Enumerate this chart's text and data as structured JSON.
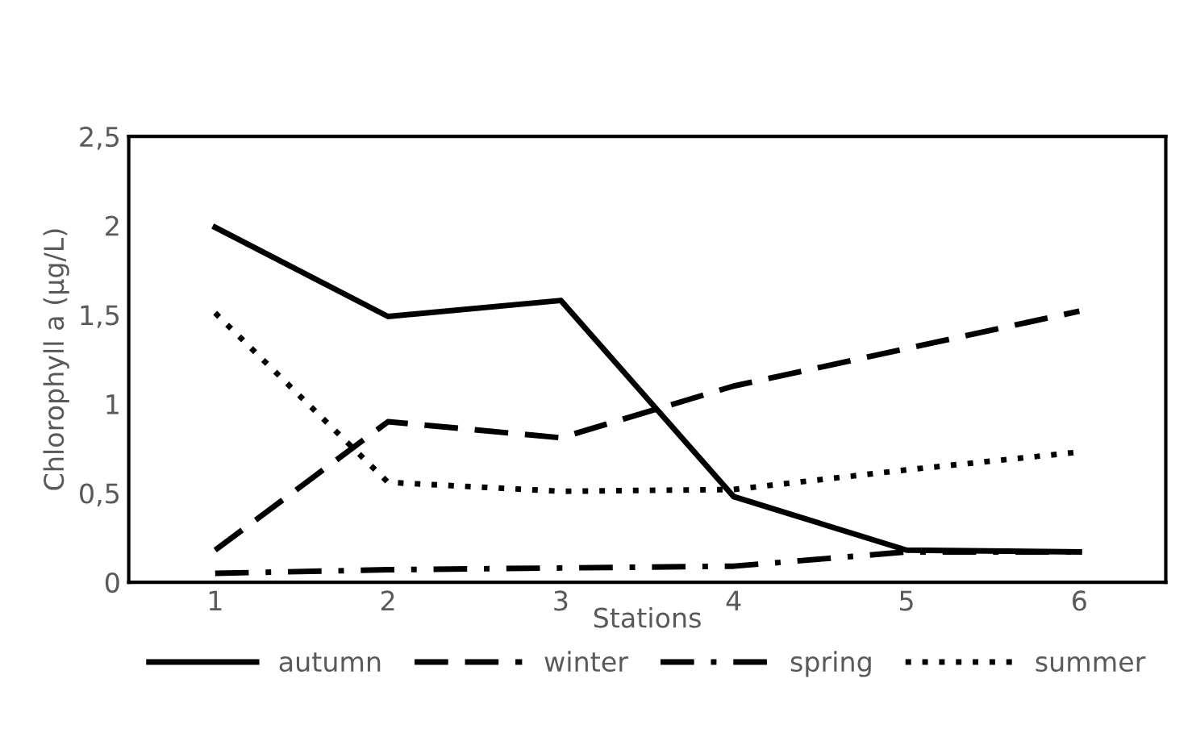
{
  "chart_data": {
    "type": "line",
    "xlabel": "Stations",
    "ylabel": "Chlorophyll a (µg/L)",
    "categories": [
      "1",
      "2",
      "3",
      "4",
      "5",
      "6"
    ],
    "series": [
      {
        "name": "autumn",
        "color": "#000000",
        "line_style": "solid",
        "values": [
          1.99,
          1.49,
          1.58,
          0.48,
          0.18,
          0.17
        ]
      },
      {
        "name": "winter",
        "color": "#000000",
        "line_style": "dashed",
        "values": [
          0.18,
          0.9,
          0.81,
          1.1,
          1.31,
          1.52
        ]
      },
      {
        "name": "spring",
        "color": "#000000",
        "line_style": "dashdot",
        "values": [
          0.05,
          0.07,
          0.08,
          0.09,
          0.17,
          0.17
        ]
      },
      {
        "name": "summer",
        "color": "#000000",
        "line_style": "dotted",
        "values": [
          1.51,
          0.56,
          0.51,
          0.52,
          0.63,
          0.73
        ]
      }
    ],
    "ylim": [
      0,
      2.5
    ],
    "yticks": [
      0,
      {
        "value": 0.5,
        "label": "0,5"
      },
      1,
      {
        "value": 1.5,
        "label": "1,5"
      },
      2,
      {
        "value": 2.5,
        "label": "2,5"
      }
    ],
    "grid": false,
    "legend": "bottom",
    "marker": "none"
  }
}
